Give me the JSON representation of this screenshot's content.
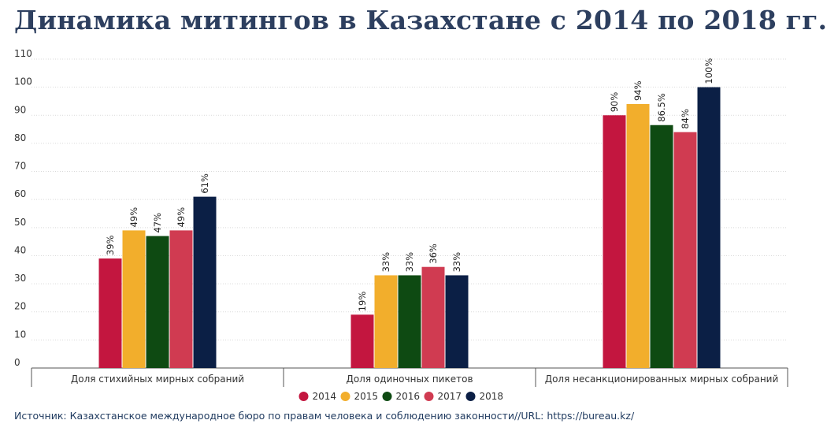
{
  "title": "Динамика митингов в Казахстане с 2014 по 2018 гг.",
  "source": "Источник: Казахстанское международное бюро по правам человека и соблюдению законности//URL: https://bureau.kz/",
  "colors": {
    "2014": "#c3163f",
    "2015": "#f2ae2c",
    "2016": "#0e4a12",
    "2017": "#d03b51",
    "2018": "#0b1f45"
  },
  "chart_data": {
    "type": "bar",
    "title": "Динамика митингов в Казахстане с 2014 по 2018 гг.",
    "categories": [
      "Доля стихийных мирных собраний",
      "Доля одиночных пикетов",
      "Доля несанкционированных мирных собраний"
    ],
    "series": [
      {
        "name": "2014",
        "values": [
          39,
          19,
          90
        ],
        "labels": [
          "39%",
          "19%",
          "90%"
        ]
      },
      {
        "name": "2015",
        "values": [
          49,
          33,
          94
        ],
        "labels": [
          "49%",
          "33%",
          "94%"
        ]
      },
      {
        "name": "2016",
        "values": [
          47,
          33,
          86.5
        ],
        "labels": [
          "47%",
          "33%",
          "86.5%"
        ]
      },
      {
        "name": "2017",
        "values": [
          49,
          36,
          84
        ],
        "labels": [
          "49%",
          "36%",
          "84%"
        ]
      },
      {
        "name": "2018",
        "values": [
          61,
          33,
          100
        ],
        "labels": [
          "61%",
          "33%",
          "100%"
        ]
      }
    ],
    "yticks": [
      0,
      10,
      20,
      30,
      40,
      50,
      60,
      70,
      80,
      90,
      100,
      110
    ],
    "ylim": [
      0,
      110
    ],
    "grid": true,
    "legend_position": "bottom-center"
  }
}
